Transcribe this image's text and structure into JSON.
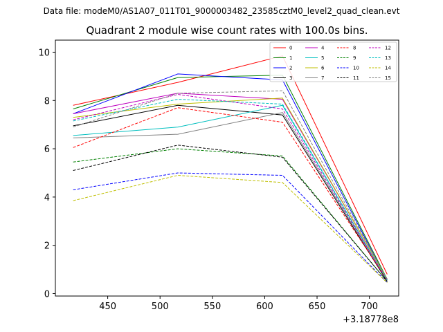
{
  "chart_data": {
    "type": "line",
    "suptitle": "Data file: modeM0/AS1A07_011T01_9000003482_23585cztM0_level2_quad_clean.evt",
    "title": "Quadrant 2 module wise count rates with 100.0s bins.",
    "xlabel": "",
    "ylabel": "",
    "x_offset_label": "+3.18778e8",
    "xlim": [
      400,
      728
    ],
    "ylim": [
      -0.1,
      10.5
    ],
    "x_ticks": [
      450,
      500,
      550,
      600,
      650,
      700
    ],
    "y_ticks": [
      0,
      2,
      4,
      6,
      8,
      10
    ],
    "legend_position": "top-right",
    "x": [
      417,
      517,
      617,
      717
    ],
    "series": [
      {
        "name": "0",
        "color": "#ff0000",
        "dashed": false,
        "values": [
          7.8,
          8.75,
          9.85,
          0.8
        ]
      },
      {
        "name": "1",
        "color": "#008000",
        "dashed": false,
        "values": [
          7.65,
          8.95,
          9.05,
          0.6
        ]
      },
      {
        "name": "2",
        "color": "#0000ff",
        "dashed": false,
        "values": [
          7.45,
          9.1,
          8.85,
          0.55
        ]
      },
      {
        "name": "3",
        "color": "#000000",
        "dashed": false,
        "values": [
          6.95,
          7.8,
          7.4,
          0.5
        ]
      },
      {
        "name": "4",
        "color": "#bf00bf",
        "dashed": false,
        "values": [
          7.45,
          8.3,
          8.05,
          0.6
        ]
      },
      {
        "name": "5",
        "color": "#00bfbf",
        "dashed": false,
        "values": [
          6.55,
          6.9,
          7.8,
          0.55
        ]
      },
      {
        "name": "6",
        "color": "#bfbf00",
        "dashed": false,
        "values": [
          7.3,
          7.85,
          8.1,
          0.6
        ]
      },
      {
        "name": "7",
        "color": "#808080",
        "dashed": false,
        "values": [
          6.45,
          6.6,
          7.5,
          0.55
        ]
      },
      {
        "name": "8",
        "color": "#ff0000",
        "dashed": true,
        "values": [
          6.05,
          7.7,
          7.1,
          0.55
        ]
      },
      {
        "name": "9",
        "color": "#008000",
        "dashed": true,
        "values": [
          5.45,
          6.0,
          5.7,
          0.5
        ]
      },
      {
        "name": "10",
        "color": "#0000ff",
        "dashed": true,
        "values": [
          4.3,
          5.0,
          4.9,
          0.45
        ]
      },
      {
        "name": "11",
        "color": "#000000",
        "dashed": true,
        "values": [
          5.1,
          6.15,
          5.65,
          0.5
        ]
      },
      {
        "name": "12",
        "color": "#bf00bf",
        "dashed": true,
        "values": [
          7.2,
          8.25,
          7.65,
          0.55
        ]
      },
      {
        "name": "13",
        "color": "#00bfbf",
        "dashed": true,
        "values": [
          7.15,
          8.05,
          7.85,
          0.55
        ]
      },
      {
        "name": "14",
        "color": "#bfbf00",
        "dashed": true,
        "values": [
          3.85,
          4.9,
          4.6,
          0.45
        ]
      },
      {
        "name": "15",
        "color": "#808080",
        "dashed": true,
        "values": [
          6.9,
          8.3,
          8.4,
          0.6
        ]
      }
    ]
  }
}
